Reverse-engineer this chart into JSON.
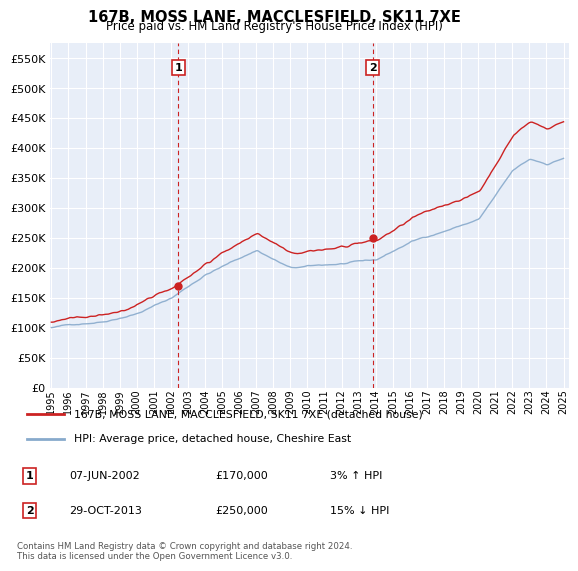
{
  "title": "167B, MOSS LANE, MACCLESFIELD, SK11 7XE",
  "subtitle": "Price paid vs. HM Land Registry's House Price Index (HPI)",
  "ylabel_ticks": [
    "£0",
    "£50K",
    "£100K",
    "£150K",
    "£200K",
    "£250K",
    "£300K",
    "£350K",
    "£400K",
    "£450K",
    "£500K",
    "£550K"
  ],
  "ytick_values": [
    0,
    50000,
    100000,
    150000,
    200000,
    250000,
    300000,
    350000,
    400000,
    450000,
    500000,
    550000
  ],
  "ylim": [
    0,
    575000
  ],
  "xlim_start": 1994.9,
  "xlim_end": 2025.3,
  "line_color_property": "#cc2222",
  "line_color_hpi": "#88aacc",
  "legend_label_property": "167B, MOSS LANE, MACCLESFIELD, SK11 7XE (detached house)",
  "legend_label_hpi": "HPI: Average price, detached house, Cheshire East",
  "sale1_x": 2002.44,
  "sale1_y": 170000,
  "sale2_x": 2013.83,
  "sale2_y": 250000,
  "table_data": [
    [
      "1",
      "07-JUN-2002",
      "£170,000",
      "3% ↑ HPI"
    ],
    [
      "2",
      "29-OCT-2013",
      "£250,000",
      "15% ↓ HPI"
    ]
  ],
  "footnote": "Contains HM Land Registry data © Crown copyright and database right 2024.\nThis data is licensed under the Open Government Licence v3.0.",
  "plot_bg_color": "#e8eef8",
  "grid_color": "#ffffff",
  "title_fontsize": 11,
  "subtitle_fontsize": 9
}
